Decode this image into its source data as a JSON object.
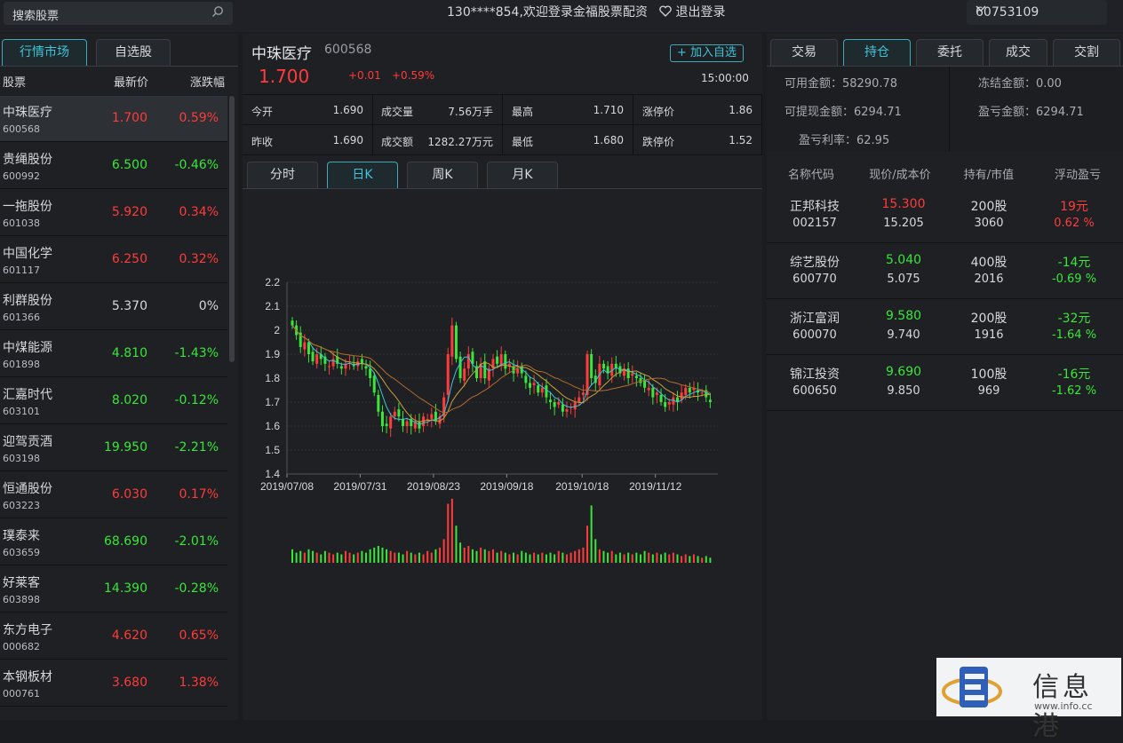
{
  "topbar": {
    "search_placeholder": "搜索股票",
    "welcome": "130****854,欢迎登录金福股票配资",
    "logout": "退出登录",
    "account_id": "60753109"
  },
  "left": {
    "tabs": [
      "行情市场",
      "自选股"
    ],
    "headers": [
      "股票",
      "最新价",
      "涨跌幅"
    ],
    "stocks": [
      {
        "name": "中珠医疗",
        "code": "600568",
        "price": "1.700",
        "change": "0.59%",
        "dir": "up"
      },
      {
        "name": "贵绳股份",
        "code": "600992",
        "price": "6.500",
        "change": "-0.46%",
        "dir": "down"
      },
      {
        "name": "一拖股份",
        "code": "601038",
        "price": "5.920",
        "change": "0.34%",
        "dir": "up"
      },
      {
        "name": "中国化学",
        "code": "601117",
        "price": "6.250",
        "change": "0.32%",
        "dir": "up"
      },
      {
        "name": "利群股份",
        "code": "601366",
        "price": "5.370",
        "change": "0%",
        "dir": "flat"
      },
      {
        "name": "中煤能源",
        "code": "601898",
        "price": "4.810",
        "change": "-1.43%",
        "dir": "down"
      },
      {
        "name": "汇嘉时代",
        "code": "603101",
        "price": "8.020",
        "change": "-0.12%",
        "dir": "down"
      },
      {
        "name": "迎驾贡酒",
        "code": "603198",
        "price": "19.950",
        "change": "-2.21%",
        "dir": "down"
      },
      {
        "name": "恒通股份",
        "code": "603223",
        "price": "6.030",
        "change": "0.17%",
        "dir": "up"
      },
      {
        "name": "璞泰来",
        "code": "603659",
        "price": "68.690",
        "change": "-2.01%",
        "dir": "down"
      },
      {
        "name": "好莱客",
        "code": "603898",
        "price": "14.390",
        "change": "-0.28%",
        "dir": "down"
      },
      {
        "name": "东方电子",
        "code": "000682",
        "price": "4.620",
        "change": "0.65%",
        "dir": "up"
      },
      {
        "name": "本钢板材",
        "code": "000761",
        "price": "3.680",
        "change": "1.38%",
        "dir": "up"
      }
    ]
  },
  "mid": {
    "name": "中珠医疗",
    "code": "600568",
    "add_fav": "+ 加入自选",
    "price": "1.700",
    "change": "+0.01",
    "change_pct": "+0.59%",
    "time": "15:00:00",
    "stats": [
      [
        {
          "k": "今开",
          "v": "1.690"
        },
        {
          "k": "成交量",
          "v": "7.56万手"
        },
        {
          "k": "最高",
          "v": "1.710"
        },
        {
          "k": "涨停价",
          "v": "1.86"
        }
      ],
      [
        {
          "k": "昨收",
          "v": "1.690"
        },
        {
          "k": "成交额",
          "v": "1282.27万元"
        },
        {
          "k": "最低",
          "v": "1.680"
        },
        {
          "k": "跌停价",
          "v": "1.52"
        }
      ]
    ],
    "chart_tabs": [
      "分时",
      "日K",
      "周K",
      "月K"
    ]
  },
  "chart_data": {
    "type": "candlestick",
    "ylim": [
      1.4,
      2.2
    ],
    "yticks": [
      "2.2",
      "2.1",
      "2",
      "1.9",
      "1.8",
      "1.7",
      "1.6",
      "1.5",
      "1.4"
    ],
    "xticks": [
      "2019/07/08",
      "2019/07/31",
      "2019/08/23",
      "2019/09/18",
      "2019/10/18",
      "2019/11/12"
    ],
    "closes": [
      2.02,
      1.98,
      1.93,
      1.95,
      1.9,
      1.87,
      1.9,
      1.88,
      1.86,
      1.85,
      1.88,
      1.86,
      1.84,
      1.86,
      1.87,
      1.85,
      1.87,
      1.86,
      1.84,
      1.8,
      1.74,
      1.66,
      1.6,
      1.6,
      1.64,
      1.66,
      1.64,
      1.6,
      1.62,
      1.6,
      1.62,
      1.59,
      1.64,
      1.63,
      1.65,
      1.62,
      1.64,
      1.72,
      1.9,
      2.02,
      1.88,
      1.8,
      1.84,
      1.9,
      1.86,
      1.8,
      1.86,
      1.8,
      1.84,
      1.88,
      1.86,
      1.9,
      1.84,
      1.86,
      1.82,
      1.84,
      1.82,
      1.78,
      1.76,
      1.78,
      1.74,
      1.76,
      1.72,
      1.7,
      1.68,
      1.7,
      1.66,
      1.67,
      1.68,
      1.7,
      1.72,
      1.74,
      1.9,
      1.8,
      1.78,
      1.86,
      1.84,
      1.82,
      1.86,
      1.84,
      1.82,
      1.84,
      1.8,
      1.82,
      1.8,
      1.78,
      1.76,
      1.76,
      1.72,
      1.74,
      1.7,
      1.68,
      1.7,
      1.72,
      1.7,
      1.74,
      1.76,
      1.74,
      1.76,
      1.74,
      1.74,
      1.72,
      1.7
    ],
    "volume": [
      8,
      6,
      7,
      6,
      8,
      7,
      6,
      5,
      7,
      6,
      5,
      6,
      5,
      7,
      6,
      5,
      6,
      7,
      6,
      8,
      9,
      10,
      9,
      8,
      7,
      6,
      6,
      5,
      7,
      6,
      5,
      6,
      5,
      7,
      6,
      8,
      9,
      14,
      35,
      38,
      22,
      12,
      9,
      10,
      8,
      7,
      9,
      8,
      7,
      8,
      6,
      7,
      6,
      5,
      6,
      5,
      7,
      6,
      5,
      6,
      5,
      6,
      5,
      6,
      5,
      7,
      6,
      5,
      6,
      7,
      8,
      9,
      22,
      34,
      14,
      8,
      7,
      6,
      7,
      5,
      6,
      5,
      6,
      5,
      6,
      5,
      7,
      6,
      5,
      6,
      5,
      6,
      5,
      6,
      5,
      4,
      5,
      4,
      5,
      4,
      3,
      4,
      3
    ],
    "ma5_color": "#3fc5d8",
    "ma10_color": "#c9a13a",
    "ma20_color": "#b46b2c"
  },
  "right": {
    "tabs": [
      "交易",
      "持仓",
      "委托",
      "成交",
      "交割"
    ],
    "account": [
      {
        "label": "可用金额：58290.78"
      },
      {
        "label": "冻结金额：0.00"
      },
      {
        "label": "可提现金额：6294.71"
      },
      {
        "label": "盈亏金额：6294.71"
      },
      {
        "label": "盈亏利率：62.95"
      }
    ],
    "headers": [
      "名称代码",
      "现价/成本价",
      "持有/市值",
      "浮动盈亏"
    ],
    "holdings": [
      {
        "name": "正邦科技",
        "code": "002157",
        "price": "15.300",
        "cost": "15.205",
        "qty": "200股",
        "value": "3060",
        "pl": "19元",
        "pl_pct": "0.62 %",
        "dir": "up"
      },
      {
        "name": "综艺股份",
        "code": "600770",
        "price": "5.040",
        "cost": "5.075",
        "qty": "400股",
        "value": "2016",
        "pl": "-14元",
        "pl_pct": "-0.69 %",
        "dir": "down"
      },
      {
        "name": "浙江富润",
        "code": "600070",
        "price": "9.580",
        "cost": "9.740",
        "qty": "200股",
        "value": "1916",
        "pl": "-32元",
        "pl_pct": "-1.64 %",
        "dir": "down"
      },
      {
        "name": "锦江投资",
        "code": "600650",
        "price": "9.690",
        "cost": "9.850",
        "qty": "100股",
        "value": "969",
        "pl": "-16元",
        "pl_pct": "-1.62 %",
        "dir": "down"
      }
    ]
  },
  "watermark": {
    "text": "信息港",
    "sub": "www.info.cc"
  }
}
